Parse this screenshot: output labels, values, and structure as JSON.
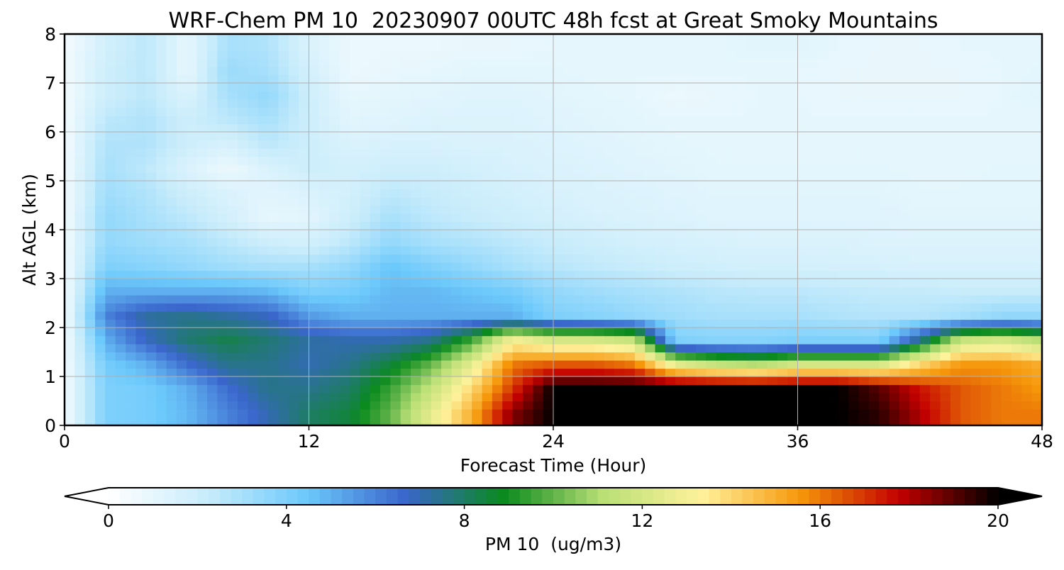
{
  "chart_data": {
    "type": "heatmap",
    "title": "WRF-Chem PM 10  20230907 00UTC 48h fcst at Great Smoky Mountains",
    "xlabel": "Forecast Time (Hour)",
    "ylabel": "Alt AGL (km)",
    "xlim": [
      0,
      48
    ],
    "ylim": [
      0,
      8
    ],
    "x_ticks": [
      0,
      12,
      24,
      36,
      48
    ],
    "y_ticks": [
      0,
      1,
      2,
      3,
      4,
      5,
      6,
      7,
      8
    ],
    "grid": true,
    "colorbar": {
      "label": "PM 10  (ug/m3)",
      "range": [
        0,
        20
      ],
      "ticks": [
        0,
        4,
        8,
        12,
        16,
        20
      ],
      "extend": "both",
      "orientation": "horizontal"
    },
    "x": [
      0,
      2,
      4,
      6,
      8,
      10,
      12,
      14,
      16,
      18,
      20,
      22,
      24,
      26,
      28,
      30,
      32,
      34,
      36,
      38,
      40,
      42,
      44,
      46,
      48
    ],
    "y": [
      0.25,
      0.75,
      1.25,
      1.75,
      2.25,
      2.75,
      3.25,
      3.75,
      4.25,
      4.75,
      5.25,
      5.75,
      6.25,
      6.75,
      7.25,
      7.75
    ],
    "z": [
      [
        0.5,
        4.0,
        4.2,
        4.8,
        6.0,
        7.0,
        8.0,
        8.5,
        10.0,
        12.5,
        15.0,
        18.5,
        20.0,
        20.0,
        20.0,
        20.0,
        20.0,
        20.0,
        20.0,
        20.0,
        19.5,
        18.0,
        16.5,
        16.0,
        16.0
      ],
      [
        0.5,
        4.0,
        4.2,
        5.0,
        6.5,
        7.5,
        7.5,
        8.0,
        9.5,
        11.5,
        14.0,
        17.0,
        20.0,
        20.0,
        20.0,
        20.0,
        20.0,
        20.0,
        20.0,
        20.0,
        19.0,
        17.5,
        16.5,
        16.0,
        15.5
      ],
      [
        0.5,
        4.2,
        5.0,
        6.5,
        7.5,
        7.5,
        7.0,
        7.5,
        8.5,
        10.0,
        12.5,
        16.0,
        16.5,
        16.5,
        16.0,
        12.5,
        11.5,
        11.0,
        12.0,
        12.0,
        12.0,
        14.0,
        15.5,
        15.5,
        15.0
      ],
      [
        0.5,
        5.0,
        6.8,
        7.8,
        8.3,
        7.8,
        7.2,
        7.0,
        7.0,
        7.5,
        9.5,
        13.0,
        12.0,
        12.0,
        11.5,
        4.0,
        3.8,
        3.8,
        4.0,
        4.0,
        4.0,
        7.5,
        11.5,
        12.0,
        11.0
      ],
      [
        0.5,
        6.0,
        7.2,
        7.5,
        7.2,
        6.8,
        5.5,
        5.0,
        5.0,
        5.0,
        5.0,
        5.0,
        4.0,
        3.8,
        3.5,
        3.2,
        3.0,
        3.0,
        3.0,
        2.8,
        2.7,
        2.7,
        3.0,
        3.5,
        3.5
      ],
      [
        0.5,
        5.0,
        5.0,
        5.0,
        5.0,
        4.8,
        4.0,
        4.2,
        4.8,
        4.8,
        4.5,
        4.2,
        3.5,
        3.2,
        3.0,
        2.8,
        2.6,
        2.5,
        2.5,
        2.4,
        2.3,
        2.3,
        2.2,
        2.2,
        2.2
      ],
      [
        0.5,
        4.0,
        3.8,
        3.5,
        3.2,
        3.0,
        3.0,
        3.5,
        4.5,
        4.0,
        3.5,
        3.0,
        2.6,
        2.4,
        2.2,
        2.0,
        1.9,
        1.8,
        1.8,
        1.7,
        1.7,
        1.6,
        1.6,
        1.6,
        1.6
      ],
      [
        0.5,
        3.5,
        3.2,
        3.0,
        2.5,
        2.0,
        1.8,
        2.5,
        3.5,
        3.0,
        2.8,
        2.5,
        2.2,
        2.0,
        1.8,
        1.7,
        1.6,
        1.5,
        1.5,
        1.5,
        1.4,
        1.4,
        1.4,
        1.4,
        1.4
      ],
      [
        0.5,
        3.5,
        3.0,
        2.5,
        1.8,
        1.0,
        1.2,
        2.0,
        3.0,
        2.5,
        2.2,
        2.0,
        1.8,
        1.6,
        1.5,
        1.4,
        1.3,
        1.3,
        1.3,
        1.3,
        1.3,
        1.2,
        1.2,
        1.2,
        1.2
      ],
      [
        0.5,
        3.2,
        2.8,
        2.0,
        1.5,
        1.2,
        1.5,
        1.8,
        2.5,
        2.2,
        2.0,
        1.8,
        1.6,
        1.5,
        1.4,
        1.3,
        1.2,
        1.2,
        1.2,
        1.2,
        1.2,
        1.1,
        1.1,
        1.1,
        1.1
      ],
      [
        0.5,
        3.0,
        2.5,
        1.5,
        0.8,
        1.5,
        2.0,
        1.8,
        2.0,
        2.0,
        1.8,
        1.6,
        1.5,
        1.4,
        1.3,
        1.2,
        1.1,
        1.1,
        1.1,
        1.1,
        1.1,
        1.0,
        1.0,
        1.1,
        1.1
      ],
      [
        0.5,
        2.8,
        2.8,
        2.0,
        1.6,
        2.5,
        2.0,
        1.5,
        1.6,
        1.6,
        1.5,
        1.5,
        1.4,
        1.3,
        1.2,
        1.1,
        1.0,
        1.0,
        1.0,
        1.0,
        1.0,
        1.0,
        1.0,
        1.0,
        1.0
      ],
      [
        0.5,
        2.5,
        2.8,
        2.0,
        2.5,
        3.0,
        2.0,
        1.2,
        1.3,
        1.4,
        1.4,
        1.4,
        1.3,
        1.2,
        1.1,
        1.0,
        1.0,
        1.0,
        1.0,
        1.0,
        1.0,
        1.0,
        1.0,
        1.0,
        1.0
      ],
      [
        0.5,
        2.0,
        2.5,
        1.5,
        3.0,
        3.5,
        2.0,
        1.0,
        1.1,
        1.2,
        1.3,
        1.3,
        1.2,
        1.1,
        1.0,
        0.8,
        0.9,
        1.0,
        1.0,
        0.9,
        0.9,
        0.9,
        0.9,
        1.0,
        1.2
      ],
      [
        0.5,
        2.0,
        2.5,
        1.0,
        3.3,
        3.0,
        1.8,
        0.8,
        0.9,
        1.0,
        1.1,
        1.1,
        1.1,
        1.0,
        1.0,
        1.0,
        1.0,
        1.0,
        1.0,
        0.9,
        0.9,
        0.9,
        0.9,
        1.0,
        1.1
      ],
      [
        0.5,
        1.8,
        2.5,
        1.0,
        3.0,
        2.8,
        1.5,
        0.8,
        0.8,
        0.8,
        0.9,
        0.9,
        1.0,
        1.0,
        1.0,
        1.0,
        1.0,
        1.2,
        1.2,
        1.0,
        0.9,
        0.9,
        1.0,
        1.0,
        1.0
      ]
    ],
    "colormap": [
      "#ffffff",
      "#c8ecfb",
      "#6cc9fb",
      "#3a66cc",
      "#0a8a1e",
      "#b9df75",
      "#fff29c",
      "#f6970a",
      "#c30000",
      "#000000"
    ]
  }
}
